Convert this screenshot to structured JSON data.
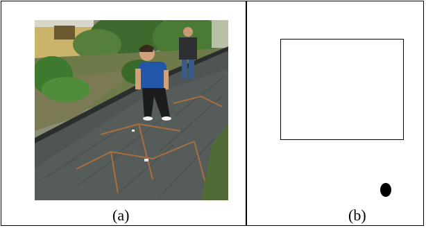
{
  "panels": [
    {
      "id": "a",
      "caption": "(a)"
    },
    {
      "id": "b",
      "caption": "(b)"
    }
  ]
}
